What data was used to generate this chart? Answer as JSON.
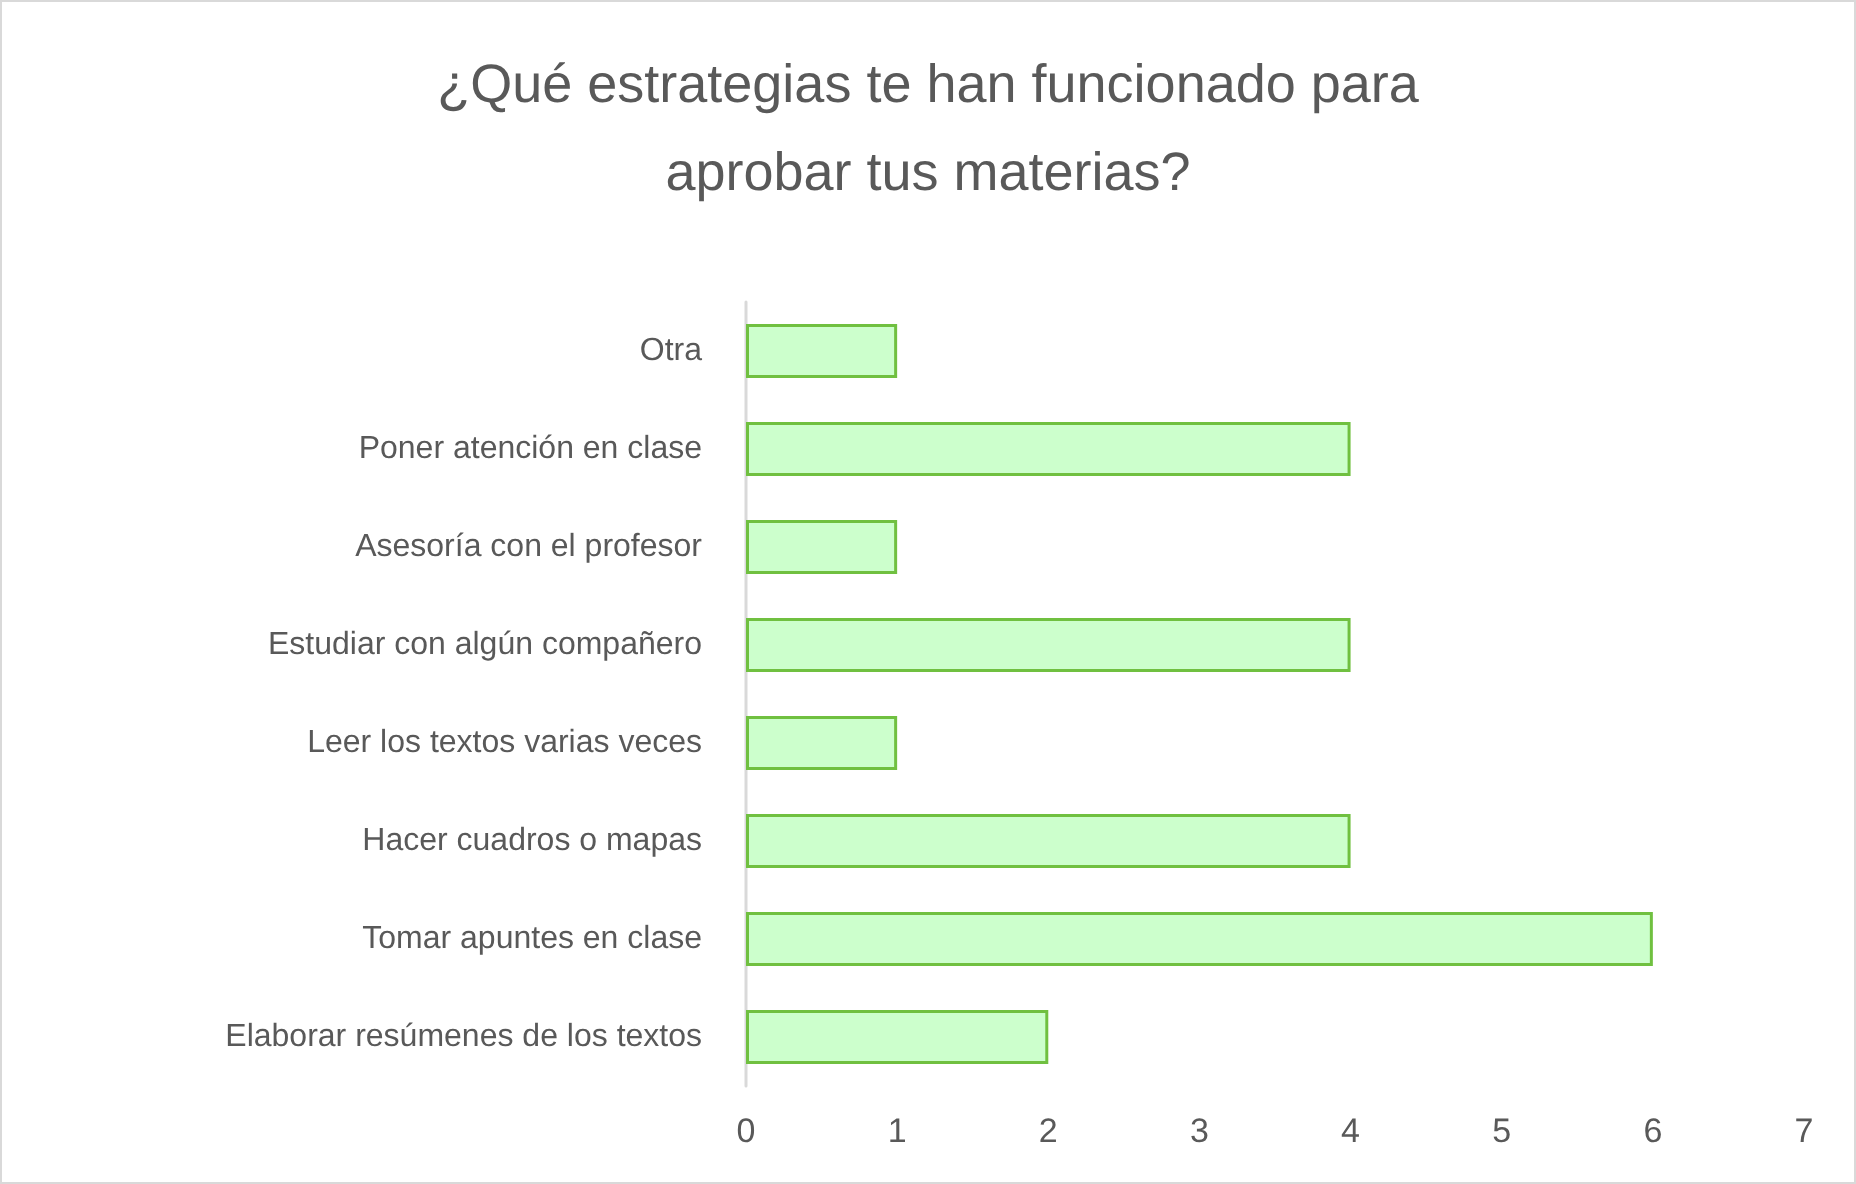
{
  "chart_data": {
    "type": "bar",
    "orientation": "horizontal",
    "title": "¿Qué estrategias te han funcionado para\naprobar tus materias?",
    "categories": [
      "Otra",
      "Poner atención en clase",
      "Asesoría con el profesor",
      "Estudiar con algún compañero",
      "Leer los textos varias veces",
      "Hacer cuadros o mapas",
      "Tomar apuntes en clase",
      "Elaborar resúmenes de los textos"
    ],
    "values": [
      1,
      4,
      1,
      4,
      1,
      4,
      6,
      2
    ],
    "color": "#ccffcc",
    "xlim": [
      0,
      7
    ],
    "xticks": [
      0,
      1,
      2,
      3,
      4,
      5,
      6,
      7
    ],
    "grid": false
  }
}
